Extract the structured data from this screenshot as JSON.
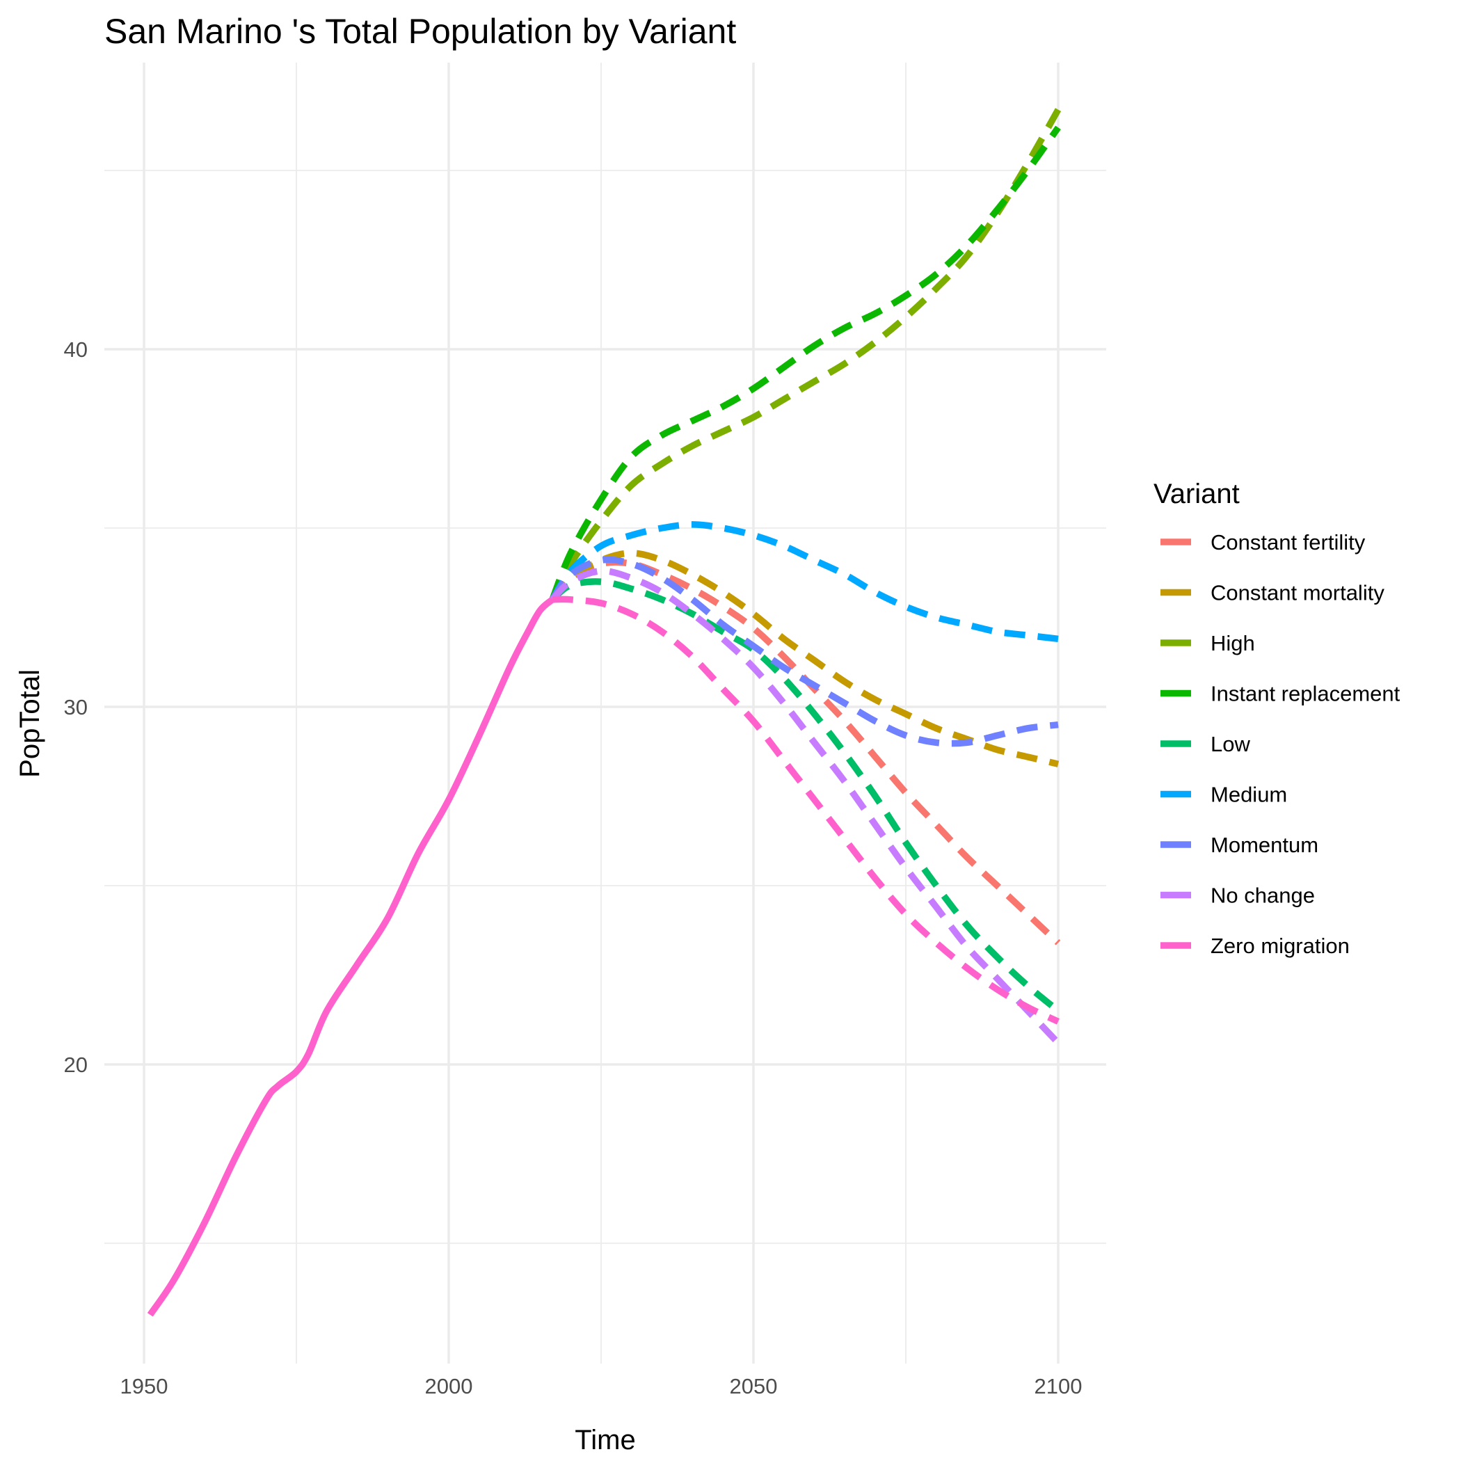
{
  "chart_data": {
    "type": "line",
    "title": "San Marino 's Total Population by Variant",
    "xlabel": "Time",
    "ylabel": "PopTotal",
    "xlim": [
      1950,
      2100
    ],
    "ylim": [
      12,
      48
    ],
    "x_ticks": [
      1950,
      2000,
      2050,
      2100
    ],
    "y_ticks": [
      20,
      30,
      40
    ],
    "grid": true,
    "legend": {
      "title": "Variant",
      "position": "right"
    },
    "historical": {
      "variant": "Zero migration",
      "x": [
        1951,
        1955,
        1960,
        1965,
        1970,
        1972,
        1975,
        1977,
        1980,
        1985,
        1990,
        1995,
        2000,
        2005,
        2010,
        2013,
        2015,
        2017
      ],
      "y": [
        13.0,
        14.0,
        15.6,
        17.4,
        19.0,
        19.4,
        19.8,
        20.3,
        21.5,
        22.8,
        24.1,
        25.9,
        27.4,
        29.2,
        31.1,
        32.1,
        32.7,
        33.0
      ]
    },
    "series": [
      {
        "name": "Constant fertility",
        "color": "#F8766D",
        "x": [
          2017,
          2020,
          2025,
          2030,
          2035,
          2040,
          2045,
          2050,
          2055,
          2060,
          2065,
          2070,
          2075,
          2080,
          2085,
          2090,
          2095,
          2100
        ],
        "y": [
          33.0,
          33.6,
          34.0,
          34.0,
          33.7,
          33.3,
          32.8,
          32.2,
          31.4,
          30.5,
          29.6,
          28.6,
          27.6,
          26.7,
          25.8,
          25.0,
          24.2,
          23.4
        ]
      },
      {
        "name": "Constant mortality",
        "color": "#C49A00",
        "x": [
          2017,
          2020,
          2025,
          2030,
          2035,
          2040,
          2045,
          2050,
          2055,
          2060,
          2065,
          2070,
          2075,
          2080,
          2085,
          2090,
          2095,
          2100
        ],
        "y": [
          33.0,
          33.6,
          34.1,
          34.3,
          34.1,
          33.7,
          33.2,
          32.6,
          31.9,
          31.3,
          30.7,
          30.2,
          29.8,
          29.4,
          29.1,
          28.8,
          28.6,
          28.4
        ]
      },
      {
        "name": "High",
        "color": "#7CAE00",
        "x": [
          2017,
          2020,
          2025,
          2030,
          2035,
          2040,
          2045,
          2050,
          2055,
          2060,
          2065,
          2070,
          2075,
          2080,
          2085,
          2090,
          2095,
          2100
        ],
        "y": [
          33.0,
          34.0,
          35.2,
          36.2,
          36.8,
          37.3,
          37.7,
          38.1,
          38.6,
          39.1,
          39.6,
          40.2,
          40.9,
          41.7,
          42.6,
          43.8,
          45.2,
          46.7
        ]
      },
      {
        "name": "Instant replacement",
        "color": "#0CB702",
        "x": [
          2017,
          2020,
          2025,
          2030,
          2035,
          2040,
          2045,
          2050,
          2055,
          2060,
          2065,
          2070,
          2075,
          2080,
          2085,
          2090,
          2095,
          2100
        ],
        "y": [
          33.0,
          34.3,
          35.8,
          37.0,
          37.6,
          38.0,
          38.4,
          38.9,
          39.5,
          40.1,
          40.6,
          41.0,
          41.5,
          42.1,
          42.9,
          43.9,
          45.0,
          46.2
        ]
      },
      {
        "name": "Low",
        "color": "#00BE67",
        "x": [
          2017,
          2020,
          2025,
          2030,
          2035,
          2040,
          2045,
          2050,
          2055,
          2060,
          2065,
          2070,
          2075,
          2080,
          2085,
          2090,
          2095,
          2100
        ],
        "y": [
          33.0,
          33.4,
          33.5,
          33.3,
          33.0,
          32.6,
          32.1,
          31.6,
          30.8,
          29.8,
          28.7,
          27.5,
          26.2,
          25.0,
          23.9,
          23.0,
          22.2,
          21.5
        ]
      },
      {
        "name": "Medium",
        "color": "#00A9FF",
        "x": [
          2017,
          2020,
          2025,
          2030,
          2035,
          2040,
          2045,
          2050,
          2055,
          2060,
          2065,
          2070,
          2075,
          2080,
          2085,
          2090,
          2095,
          2100
        ],
        "y": [
          33.0,
          33.8,
          34.5,
          34.8,
          35.0,
          35.1,
          35.0,
          34.8,
          34.5,
          34.1,
          33.7,
          33.2,
          32.8,
          32.5,
          32.3,
          32.1,
          32.0,
          31.9
        ]
      },
      {
        "name": "Momentum",
        "color": "#6F81FF",
        "x": [
          2017,
          2020,
          2025,
          2030,
          2035,
          2040,
          2045,
          2050,
          2055,
          2060,
          2065,
          2070,
          2075,
          2080,
          2085,
          2090,
          2095,
          2100
        ],
        "y": [
          33.0,
          33.7,
          34.1,
          34.0,
          33.6,
          33.0,
          32.3,
          31.7,
          31.1,
          30.6,
          30.1,
          29.6,
          29.2,
          29.0,
          29.0,
          29.2,
          29.4,
          29.5
        ]
      },
      {
        "name": "No change",
        "color": "#C77CFF",
        "x": [
          2017,
          2020,
          2025,
          2030,
          2035,
          2040,
          2045,
          2050,
          2055,
          2060,
          2065,
          2070,
          2075,
          2080,
          2085,
          2090,
          2095,
          2100
        ],
        "y": [
          33.0,
          33.5,
          33.8,
          33.6,
          33.2,
          32.6,
          31.9,
          31.1,
          30.1,
          29.0,
          27.9,
          26.7,
          25.5,
          24.4,
          23.3,
          22.4,
          21.5,
          20.6
        ]
      },
      {
        "name": "Zero migration",
        "color": "#FF61CC",
        "x": [
          2017,
          2020,
          2025,
          2030,
          2035,
          2040,
          2045,
          2050,
          2055,
          2060,
          2065,
          2070,
          2075,
          2080,
          2085,
          2090,
          2095,
          2100
        ],
        "y": [
          33.0,
          33.0,
          32.9,
          32.6,
          32.1,
          31.4,
          30.5,
          29.6,
          28.5,
          27.4,
          26.3,
          25.2,
          24.2,
          23.4,
          22.7,
          22.1,
          21.6,
          21.2
        ]
      }
    ]
  }
}
